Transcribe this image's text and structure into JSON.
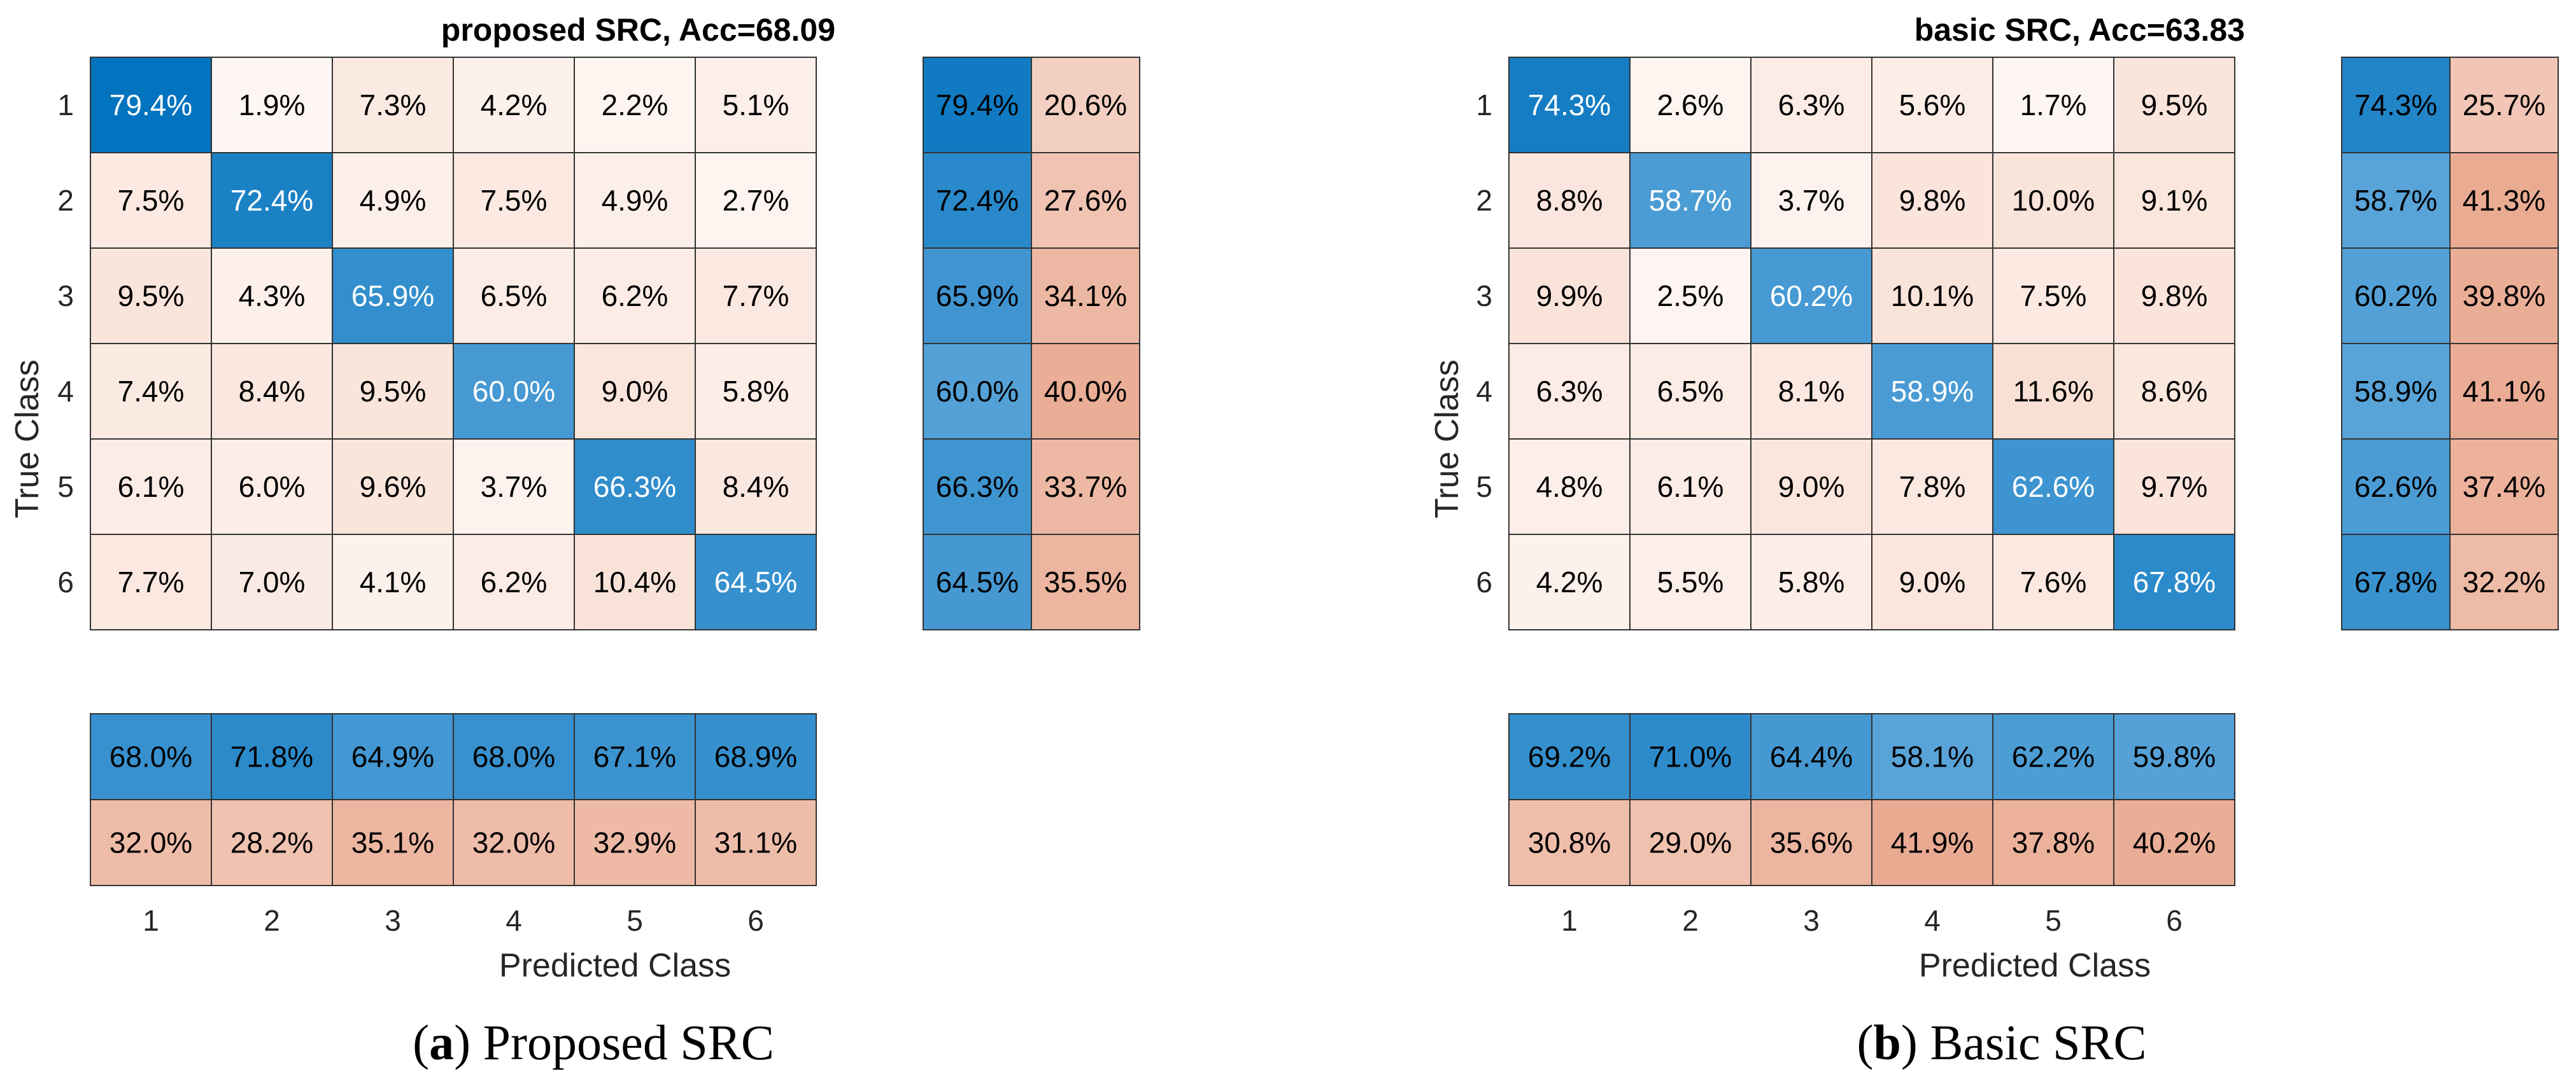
{
  "colors": {
    "diag_strong": "#0072BD",
    "high_blue": "#58A3D8",
    "error_orange": "#E8A58B",
    "light_cell": "#FDF3EF",
    "grid_line": "#333333",
    "text_dark": "#000000",
    "text_light": "#FFFFFF"
  },
  "chart_data": [
    {
      "type": "heatmap",
      "title": "proposed SRC, Acc=68.09",
      "caption_letter": "a",
      "caption_text": "Proposed SRC",
      "xlabel": "Predicted Class",
      "ylabel": "True Class",
      "classes": [
        "1",
        "2",
        "3",
        "4",
        "5",
        "6"
      ],
      "matrix": [
        [
          "79.4%",
          "1.9%",
          "7.3%",
          "4.2%",
          "2.2%",
          "5.1%"
        ],
        [
          "7.5%",
          "72.4%",
          "4.9%",
          "7.5%",
          "4.9%",
          "2.7%"
        ],
        [
          "9.5%",
          "4.3%",
          "65.9%",
          "6.5%",
          "6.2%",
          "7.7%"
        ],
        [
          "7.4%",
          "8.4%",
          "9.5%",
          "60.0%",
          "9.0%",
          "5.8%"
        ],
        [
          "6.1%",
          "6.0%",
          "9.6%",
          "3.7%",
          "66.3%",
          "8.4%"
        ],
        [
          "7.7%",
          "7.0%",
          "4.1%",
          "6.2%",
          "10.4%",
          "64.5%"
        ]
      ],
      "row_summary": [
        [
          "79.4%",
          "20.6%"
        ],
        [
          "72.4%",
          "27.6%"
        ],
        [
          "65.9%",
          "34.1%"
        ],
        [
          "60.0%",
          "40.0%"
        ],
        [
          "66.3%",
          "33.7%"
        ],
        [
          "64.5%",
          "35.5%"
        ]
      ],
      "column_summary": [
        [
          "68.0%",
          "71.8%",
          "64.9%",
          "68.0%",
          "67.1%",
          "68.9%"
        ],
        [
          "32.0%",
          "28.2%",
          "35.1%",
          "32.0%",
          "32.9%",
          "31.1%"
        ]
      ]
    },
    {
      "type": "heatmap",
      "title": "basic SRC, Acc=63.83",
      "caption_letter": "b",
      "caption_text": "Basic SRC",
      "xlabel": "Predicted Class",
      "ylabel": "True Class",
      "classes": [
        "1",
        "2",
        "3",
        "4",
        "5",
        "6"
      ],
      "matrix": [
        [
          "74.3%",
          "2.6%",
          "6.3%",
          "5.6%",
          "1.7%",
          "9.5%"
        ],
        [
          "8.8%",
          "58.7%",
          "3.7%",
          "9.8%",
          "10.0%",
          "9.1%"
        ],
        [
          "9.9%",
          "2.5%",
          "60.2%",
          "10.1%",
          "7.5%",
          "9.8%"
        ],
        [
          "6.3%",
          "6.5%",
          "8.1%",
          "58.9%",
          "11.6%",
          "8.6%"
        ],
        [
          "4.8%",
          "6.1%",
          "9.0%",
          "7.8%",
          "62.6%",
          "9.7%"
        ],
        [
          "4.2%",
          "5.5%",
          "5.8%",
          "9.0%",
          "7.6%",
          "67.8%"
        ]
      ],
      "row_summary": [
        [
          "74.3%",
          "25.7%"
        ],
        [
          "58.7%",
          "41.3%"
        ],
        [
          "60.2%",
          "39.8%"
        ],
        [
          "58.9%",
          "41.1%"
        ],
        [
          "62.6%",
          "37.4%"
        ],
        [
          "67.8%",
          "32.2%"
        ]
      ],
      "column_summary": [
        [
          "69.2%",
          "71.0%",
          "64.4%",
          "58.1%",
          "62.2%",
          "59.8%"
        ],
        [
          "30.8%",
          "29.0%",
          "35.6%",
          "41.9%",
          "37.8%",
          "40.2%"
        ]
      ]
    }
  ]
}
